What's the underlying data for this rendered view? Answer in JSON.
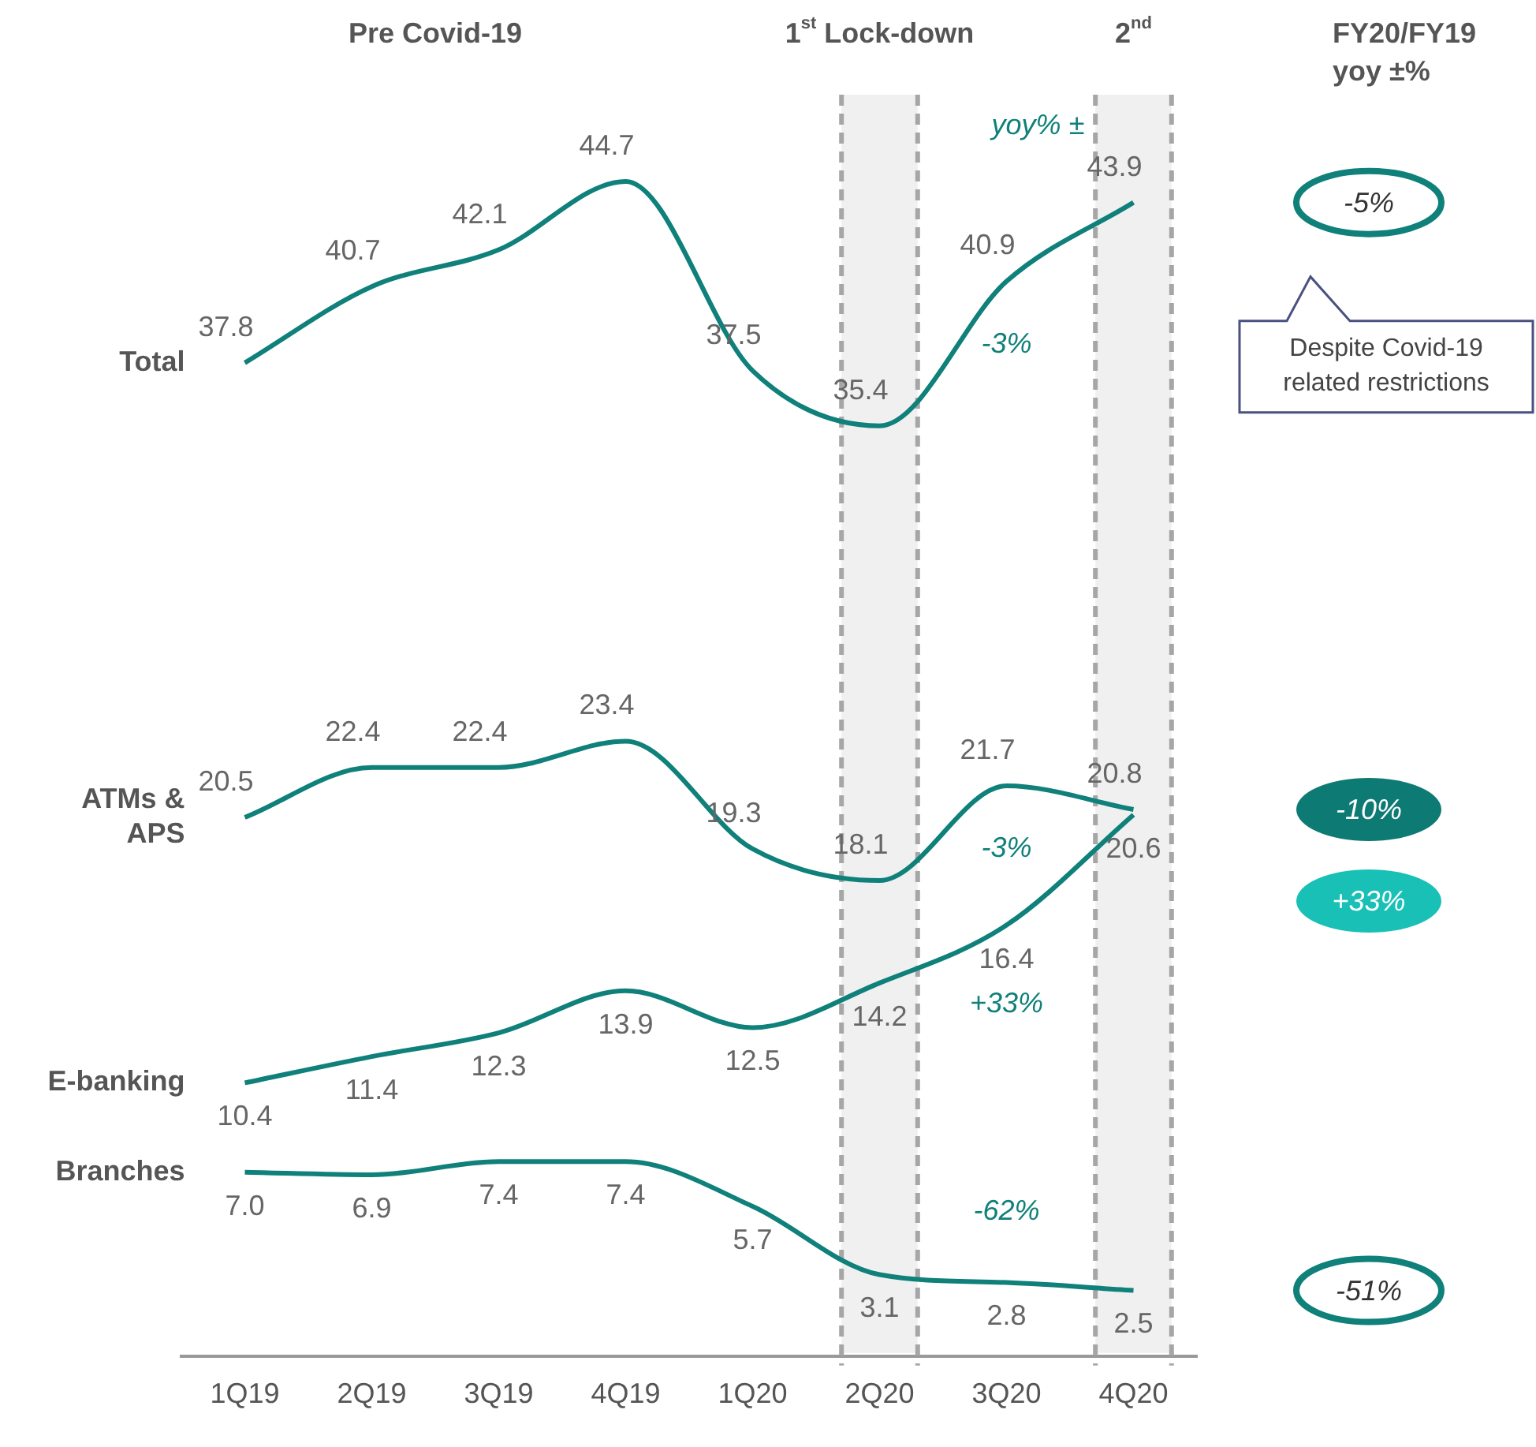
{
  "chart_data": {
    "type": "line",
    "categories": [
      "1Q19",
      "2Q19",
      "3Q19",
      "4Q19",
      "1Q20",
      "2Q20",
      "3Q20",
      "4Q20"
    ],
    "series": [
      {
        "name": "Total",
        "color": "#0f807a",
        "values": [
          37.8,
          40.7,
          42.1,
          44.7,
          37.5,
          35.4,
          40.9,
          43.9
        ]
      },
      {
        "name": "ATMs & APS",
        "color": "#0f807a",
        "values": [
          20.5,
          22.4,
          22.4,
          23.4,
          19.3,
          18.1,
          21.7,
          20.8
        ]
      },
      {
        "name": "E-banking",
        "color": "#0f807a",
        "values": [
          10.4,
          11.4,
          12.3,
          13.9,
          12.5,
          14.2,
          16.4,
          20.6
        ]
      },
      {
        "name": "Branches",
        "color": "#0f807a",
        "values": [
          7.0,
          6.9,
          7.4,
          7.4,
          5.7,
          3.1,
          2.8,
          2.5
        ],
        "value_labels": [
          "7.0",
          "6.9",
          "7.4",
          "7.4",
          "5.7",
          "3.1",
          "2.8",
          "2.5"
        ]
      }
    ],
    "tick_labels": "x",
    "grid": false,
    "legend": false,
    "data_labels": true,
    "bands": [
      {
        "axis": "x",
        "from": "2Q20",
        "to": "2Q20",
        "label": "1$^{st}$ Lock-down",
        "color": "#f0f0f0"
      },
      {
        "axis": "x",
        "from": "4Q20",
        "to": "4Q20",
        "label": "2$^{nd}$",
        "color": "#f0f0f0"
      }
    ],
    "annotations": [
      "Pre Covid-19",
      "FY20/FY19 yoy ±%",
      "yoy% ±",
      "Despite Covid-19 related restrictions",
      "-3%",
      "-3%",
      "+33%",
      "-62%",
      "-5%",
      "-10%",
      "+33%",
      "-51%"
    ]
  }
}
